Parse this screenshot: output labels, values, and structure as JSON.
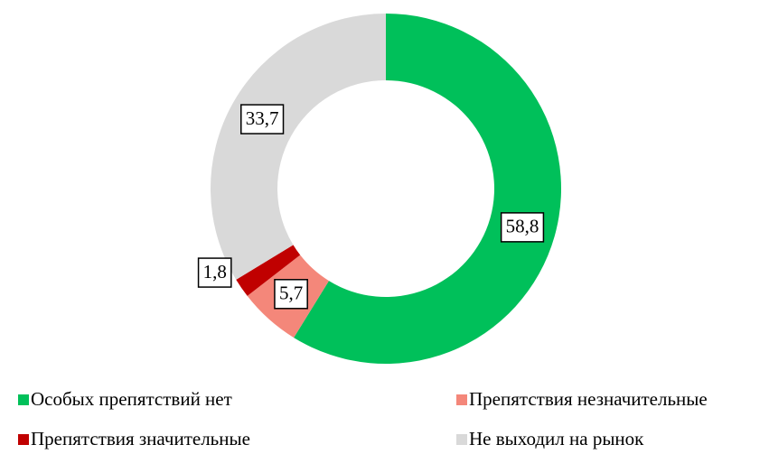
{
  "chart_data": {
    "type": "donut",
    "categories": [
      "Особых препятствий нет",
      "Препятствия незначительные",
      "Препятствия значительные",
      "Не выходил на рынок"
    ],
    "values": [
      58.8,
      5.7,
      1.8,
      33.7
    ],
    "value_labels": [
      "58,8",
      "5,7",
      "1,8",
      "33,7"
    ],
    "colors": [
      "#00c05a",
      "#f4877a",
      "#c00000",
      "#d9d9d9"
    ]
  }
}
